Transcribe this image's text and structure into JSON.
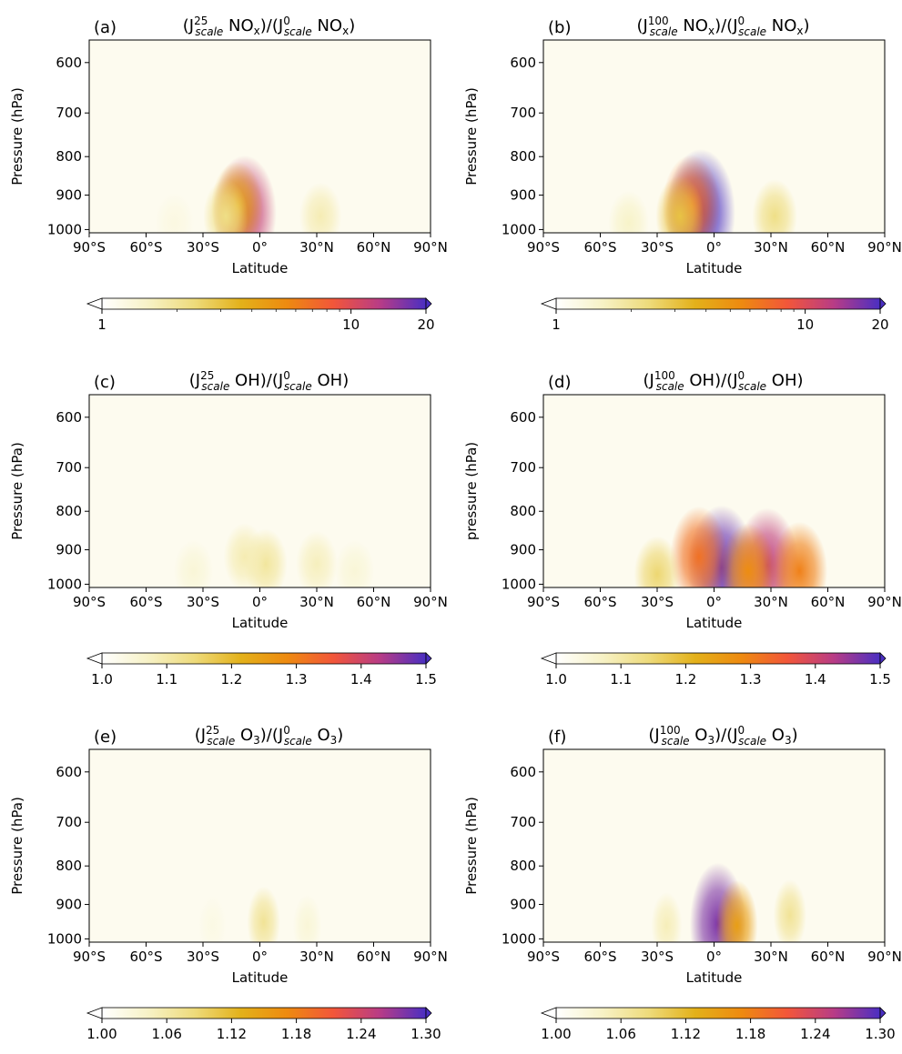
{
  "figure": {
    "panels": [
      {
        "letter": "(a)",
        "t1": "(J",
        "t1sup": "25",
        "t1sub": "scale",
        "t1tail": " NO",
        "t1tailsub": "x",
        "mid": ")/(J",
        "t2sup": "0",
        "t2sub": "scale",
        "t2tail": " NO",
        "t2tailsub": "x",
        "end": ")",
        "ylabel": "Pressure (hPa)",
        "xlabel": "Latitude",
        "cbar_ticks": [
          "1",
          "10",
          "20"
        ]
      },
      {
        "letter": "(b)",
        "t1": "(J",
        "t1sup": "100",
        "t1sub": "scale",
        "t1tail": " NO",
        "t1tailsub": "x",
        "mid": ")/(J",
        "t2sup": "0",
        "t2sub": "scale",
        "t2tail": " NO",
        "t2tailsub": "x",
        "end": ")",
        "ylabel": "Pressure (hPa)",
        "xlabel": "Latitude",
        "cbar_ticks": [
          "1",
          "10",
          "20"
        ]
      },
      {
        "letter": "(c)",
        "t1": "(J",
        "t1sup": "25",
        "t1sub": "scale",
        "t1tail": " OH",
        "t1tailsub": "",
        "mid": ")/(J",
        "t2sup": "0",
        "t2sub": "scale",
        "t2tail": " OH",
        "t2tailsub": "",
        "end": ")",
        "ylabel": "Pressure (hPa)",
        "xlabel": "Latitude",
        "cbar_ticks": [
          "1.0",
          "1.1",
          "1.2",
          "1.3",
          "1.4",
          "1.5"
        ]
      },
      {
        "letter": "(d)",
        "t1": "(J",
        "t1sup": "100",
        "t1sub": "scale",
        "t1tail": " OH",
        "t1tailsub": "",
        "mid": ")/(J",
        "t2sup": "0",
        "t2sub": "scale",
        "t2tail": " OH",
        "t2tailsub": "",
        "end": ")",
        "ylabel": "pressure (hPa)",
        "xlabel": "Latitude",
        "cbar_ticks": [
          "1.0",
          "1.1",
          "1.2",
          "1.3",
          "1.4",
          "1.5"
        ]
      },
      {
        "letter": "(e)",
        "t1": "(J",
        "t1sup": "25",
        "t1sub": "scale",
        "t1tail": " O",
        "t1tailsub": "3",
        "mid": ")/(J",
        "t2sup": "0",
        "t2sub": "scale",
        "t2tail": " O",
        "t2tailsub": "3",
        "end": ")",
        "ylabel": "Pressure (hPa)",
        "xlabel": "Latitude",
        "cbar_ticks": [
          "1.00",
          "1.06",
          "1.12",
          "1.18",
          "1.24",
          "1.30"
        ]
      },
      {
        "letter": "(f)",
        "t1": "(J",
        "t1sup": "100",
        "t1sub": "scale",
        "t1tail": " O",
        "t1tailsub": "3",
        "mid": ")/(J",
        "t2sup": "0",
        "t2sub": "scale",
        "t2tail": " O",
        "t2tailsub": "3",
        "end": ")",
        "ylabel": "Pressure (hPa)",
        "xlabel": "Latitude",
        "cbar_ticks": [
          "1.00",
          "1.06",
          "1.12",
          "1.18",
          "1.24",
          "1.30"
        ]
      }
    ],
    "x_ticks": [
      "90°S",
      "60°S",
      "30°S",
      "0°",
      "30°N",
      "60°N",
      "90°N"
    ],
    "y_ticks": [
      "600",
      "700",
      "800",
      "900",
      "1000"
    ],
    "colormap": [
      "#ffffff",
      "#f7f2c6",
      "#eedb7b",
      "#e3b11a",
      "#ee8a10",
      "#f2563a",
      "#b83c86",
      "#4a2fc2"
    ]
  },
  "chart_data": [
    {
      "type": "heatmap",
      "panel": "(a)",
      "x_range": [
        -90,
        90
      ],
      "y_range": [
        1010,
        560
      ],
      "y_scale": "log",
      "color_range": [
        1,
        20
      ],
      "color_scale": "log",
      "blobs": [
        {
          "lat": -8,
          "p": 950,
          "value": 12
        },
        {
          "lat": -12,
          "p": 930,
          "value": 4
        },
        {
          "lat": -18,
          "p": 960,
          "value": 2.2
        },
        {
          "lat": 32,
          "p": 960,
          "value": 1.7
        },
        {
          "lat": -45,
          "p": 980,
          "value": 1.25
        }
      ]
    },
    {
      "type": "heatmap",
      "panel": "(b)",
      "x_range": [
        -90,
        90
      ],
      "y_range": [
        1010,
        560
      ],
      "y_scale": "log",
      "color_range": [
        1,
        20
      ],
      "color_scale": "log",
      "blobs": [
        {
          "lat": -7,
          "p": 950,
          "value": 20
        },
        {
          "lat": -12,
          "p": 930,
          "value": 7
        },
        {
          "lat": -18,
          "p": 960,
          "value": 3
        },
        {
          "lat": 32,
          "p": 960,
          "value": 2.2
        },
        {
          "lat": -45,
          "p": 980,
          "value": 1.5
        }
      ]
    },
    {
      "type": "heatmap",
      "panel": "(c)",
      "x_range": [
        -90,
        90
      ],
      "y_range": [
        1010,
        560
      ],
      "y_scale": "log",
      "color_range": [
        1.0,
        1.5
      ],
      "color_scale": "linear",
      "blobs": [
        {
          "lat": 3,
          "p": 940,
          "value": 1.11
        },
        {
          "lat": -8,
          "p": 920,
          "value": 1.09
        },
        {
          "lat": 30,
          "p": 940,
          "value": 1.08
        },
        {
          "lat": -35,
          "p": 960,
          "value": 1.05
        },
        {
          "lat": 50,
          "p": 960,
          "value": 1.05
        }
      ]
    },
    {
      "type": "heatmap",
      "panel": "(d)",
      "x_range": [
        -90,
        90
      ],
      "y_range": [
        1010,
        560
      ],
      "y_scale": "log",
      "color_range": [
        1.0,
        1.5
      ],
      "color_scale": "linear",
      "blobs": [
        {
          "lat": 4,
          "p": 950,
          "value": 1.48
        },
        {
          "lat": 28,
          "p": 945,
          "value": 1.42
        },
        {
          "lat": -8,
          "p": 920,
          "value": 1.32
        },
        {
          "lat": 45,
          "p": 960,
          "value": 1.3
        },
        {
          "lat": 18,
          "p": 960,
          "value": 1.28
        },
        {
          "lat": -30,
          "p": 970,
          "value": 1.15
        }
      ]
    },
    {
      "type": "heatmap",
      "panel": "(e)",
      "x_range": [
        -90,
        90
      ],
      "y_range": [
        1010,
        560
      ],
      "y_scale": "log",
      "color_range": [
        1.0,
        1.3
      ],
      "color_scale": "linear",
      "blobs": [
        {
          "lat": 2,
          "p": 950,
          "value": 1.07
        },
        {
          "lat": 25,
          "p": 960,
          "value": 1.03
        },
        {
          "lat": -25,
          "p": 960,
          "value": 1.02
        }
      ]
    },
    {
      "type": "heatmap",
      "panel": "(f)",
      "x_range": [
        -90,
        90
      ],
      "y_range": [
        1010,
        560
      ],
      "y_scale": "log",
      "color_range": [
        1.0,
        1.3
      ],
      "color_scale": "linear",
      "blobs": [
        {
          "lat": 2,
          "p": 955,
          "value": 1.28
        },
        {
          "lat": 12,
          "p": 960,
          "value": 1.15
        },
        {
          "lat": 40,
          "p": 930,
          "value": 1.07
        },
        {
          "lat": -25,
          "p": 960,
          "value": 1.05
        }
      ]
    }
  ]
}
